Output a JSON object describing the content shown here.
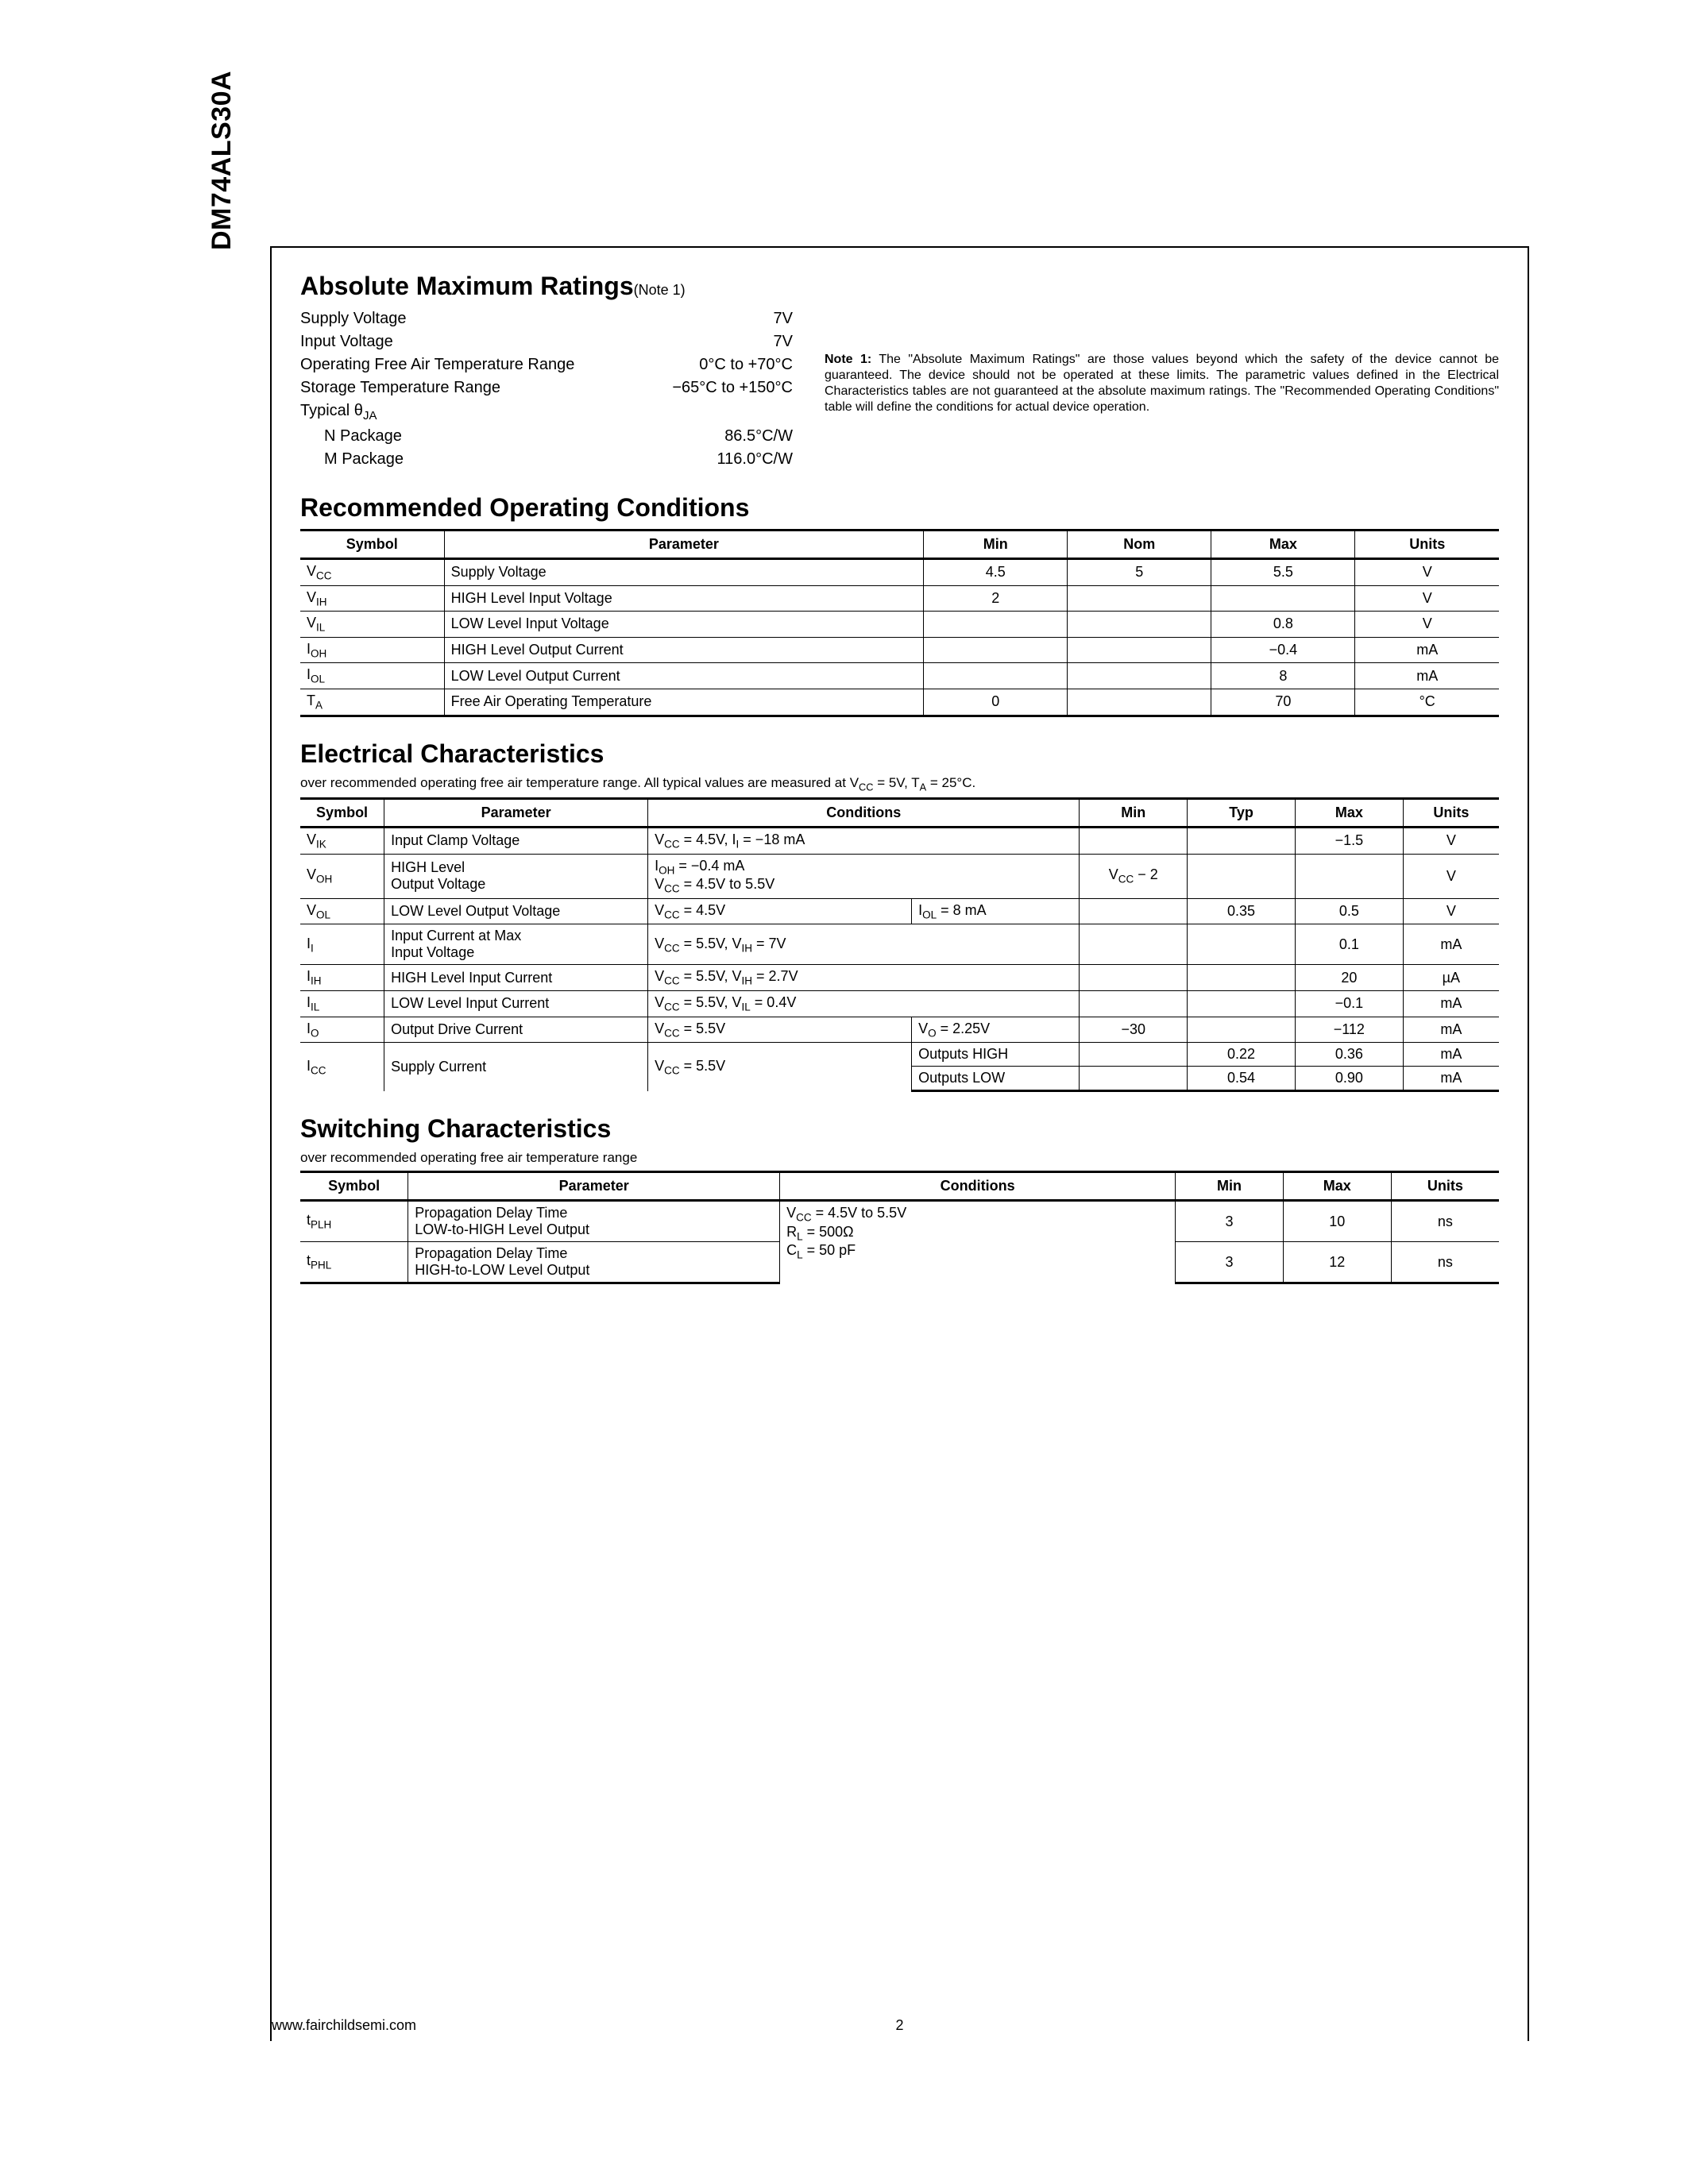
{
  "part_number": "DM74ALS30A",
  "footer_url": "www.fairchildsemi.com",
  "page_number": "2",
  "amr": {
    "title": "Absolute Maximum Ratings",
    "note_ref": "(Note 1)",
    "rows": [
      {
        "label": "Supply Voltage",
        "value": "7V",
        "indent": false
      },
      {
        "label": "Input Voltage",
        "value": "7V",
        "indent": false
      },
      {
        "label": "Operating Free Air Temperature Range",
        "value": "0°C to +70°C",
        "indent": false
      },
      {
        "label": "Storage Temperature Range",
        "value": "−65°C to +150°C",
        "indent": false
      },
      {
        "label": "Typical θ_JA",
        "value": "",
        "indent": false
      },
      {
        "label": "N Package",
        "value": "86.5°C/W",
        "indent": true
      },
      {
        "label": "M Package",
        "value": "116.0°C/W",
        "indent": true
      }
    ],
    "note_label": "Note 1:",
    "note_text": "The \"Absolute Maximum Ratings\" are those values beyond which the safety of the device cannot be guaranteed. The device should not be operated at these limits. The parametric values defined in the Electrical Characteristics tables are not guaranteed at the absolute maximum ratings. The \"Recommended Operating Conditions\" table will define the conditions for actual device operation."
  },
  "roc": {
    "title": "Recommended Operating Conditions",
    "headers": [
      "Symbol",
      "Parameter",
      "Min",
      "Nom",
      "Max",
      "Units"
    ],
    "rows": [
      {
        "sym": "V_CC",
        "param": "Supply Voltage",
        "min": "4.5",
        "nom": "5",
        "max": "5.5",
        "units": "V"
      },
      {
        "sym": "V_IH",
        "param": "HIGH Level Input Voltage",
        "min": "2",
        "nom": "",
        "max": "",
        "units": "V"
      },
      {
        "sym": "V_IL",
        "param": "LOW Level Input Voltage",
        "min": "",
        "nom": "",
        "max": "0.8",
        "units": "V"
      },
      {
        "sym": "I_OH",
        "param": "HIGH Level Output Current",
        "min": "",
        "nom": "",
        "max": "−0.4",
        "units": "mA"
      },
      {
        "sym": "I_OL",
        "param": "LOW Level Output Current",
        "min": "",
        "nom": "",
        "max": "8",
        "units": "mA"
      },
      {
        "sym": "T_A",
        "param": "Free Air Operating Temperature",
        "min": "0",
        "nom": "",
        "max": "70",
        "units": "°C"
      }
    ]
  },
  "ec": {
    "title": "Electrical Characteristics",
    "subtitle": "over recommended operating free air temperature range. All typical values are measured at V_CC = 5V, T_A = 25°C.",
    "headers": [
      "Symbol",
      "Parameter",
      "Conditions",
      "Min",
      "Typ",
      "Max",
      "Units"
    ],
    "rows": [
      {
        "sym": "V_IK",
        "param": "Input Clamp Voltage",
        "cond1": "V_CC = 4.5V, I_I = −18 mA",
        "cond2": "",
        "min": "",
        "typ": "",
        "max": "−1.5",
        "units": "V"
      },
      {
        "sym": "V_OH",
        "param_l1": "HIGH Level",
        "param_l2": "Output Voltage",
        "cond1_l1": "I_OH = −0.4 mA",
        "cond1_l2": "V_CC = 4.5V to 5.5V",
        "cond2": "",
        "min": "V_CC − 2",
        "typ": "",
        "max": "",
        "units": "V"
      },
      {
        "sym": "V_OL",
        "param": "LOW Level Output Voltage",
        "cond1": "V_CC = 4.5V",
        "cond2": "I_OL = 8 mA",
        "min": "",
        "typ": "0.35",
        "max": "0.5",
        "units": "V"
      },
      {
        "sym": "I_I",
        "param_l1": "Input Current at Max",
        "param_l2": "Input Voltage",
        "cond1": "V_CC = 5.5V, V_IH = 7V",
        "cond2": "",
        "min": "",
        "typ": "",
        "max": "0.1",
        "units": "mA"
      },
      {
        "sym": "I_IH",
        "param": "HIGH Level Input Current",
        "cond1": "V_CC = 5.5V, V_IH = 2.7V",
        "cond2": "",
        "min": "",
        "typ": "",
        "max": "20",
        "units": "µA"
      },
      {
        "sym": "I_IL",
        "param": "LOW Level Input Current",
        "cond1": "V_CC = 5.5V, V_IL = 0.4V",
        "cond2": "",
        "min": "",
        "typ": "",
        "max": "−0.1",
        "units": "mA"
      },
      {
        "sym": "I_O",
        "param": "Output Drive Current",
        "cond1": "V_CC = 5.5V",
        "cond2": "V_O = 2.25V",
        "min": "−30",
        "typ": "",
        "max": "−112",
        "units": "mA"
      },
      {
        "sym": "I_CC",
        "param": "Supply Current",
        "cond1": "V_CC = 5.5V",
        "cond2_a": "Outputs HIGH",
        "cond2_b": "Outputs LOW",
        "typ_a": "0.22",
        "max_a": "0.36",
        "typ_b": "0.54",
        "max_b": "0.90",
        "units": "mA"
      }
    ]
  },
  "sc": {
    "title": "Switching Characteristics",
    "subtitle": "over recommended operating free air temperature range",
    "headers": [
      "Symbol",
      "Parameter",
      "Conditions",
      "Min",
      "Max",
      "Units"
    ],
    "cond_l1": "V_CC = 4.5V to 5.5V",
    "cond_l2": "R_L = 500Ω",
    "cond_l3": "C_L = 50 pF",
    "rows": [
      {
        "sym": "t_PLH",
        "param_l1": "Propagation Delay Time",
        "param_l2": "LOW-to-HIGH Level Output",
        "min": "3",
        "max": "10",
        "units": "ns"
      },
      {
        "sym": "t_PHL",
        "param_l1": "Propagation Delay Time",
        "param_l2": "HIGH-to-LOW Level Output",
        "min": "3",
        "max": "12",
        "units": "ns"
      }
    ]
  }
}
